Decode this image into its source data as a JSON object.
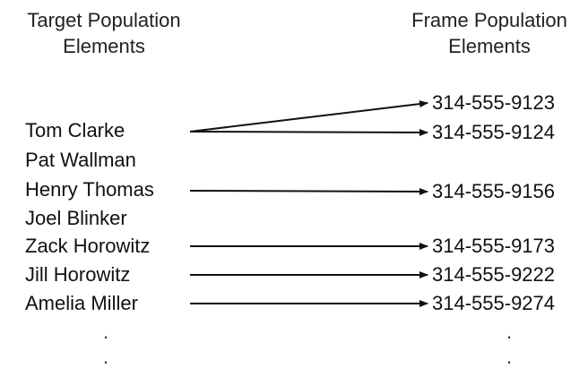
{
  "headers": {
    "target": [
      "Target Population",
      "Elements"
    ],
    "frame": [
      "Frame Population",
      "Elements"
    ]
  },
  "target_elements": [
    "Tom Clarke",
    "Pat Wallman",
    "Henry Thomas",
    "Joel Blinker",
    "Zack Horowitz",
    "Jill Horowitz",
    "Amelia Miller"
  ],
  "frame_elements": [
    "314-555-9123",
    "314-555-9124",
    "314-555-9156",
    "314-555-9173",
    "314-555-9222",
    "314-555-9274"
  ],
  "mappings": [
    {
      "from": "Tom Clarke",
      "to": "314-555-9123"
    },
    {
      "from": "Tom Clarke",
      "to": "314-555-9124"
    },
    {
      "from": "Henry Thomas",
      "to": "314-555-9156"
    },
    {
      "from": "Zack Horowitz",
      "to": "314-555-9173"
    },
    {
      "from": "Jill Horowitz",
      "to": "314-555-9222"
    },
    {
      "from": "Amelia Miller",
      "to": "314-555-9274"
    }
  ],
  "continuation": ".",
  "colors": {
    "text": "#111111",
    "arrow": "#111111"
  }
}
